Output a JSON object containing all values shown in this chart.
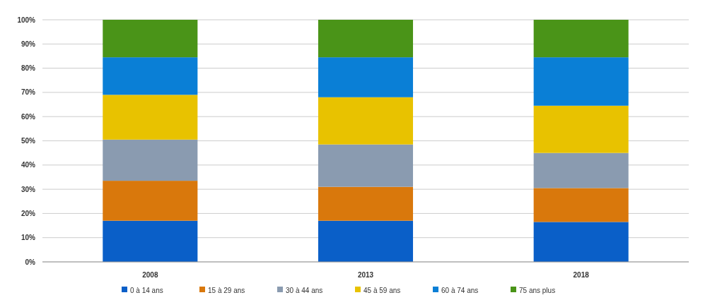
{
  "chart_data": {
    "type": "bar",
    "stacked": true,
    "categories": [
      "2008",
      "2013",
      "2018"
    ],
    "series": [
      {
        "name": "0 à 14 ans",
        "color": "#0a5fc8",
        "values": [
          17,
          17,
          16.5
        ]
      },
      {
        "name": "15 à 29 ans",
        "color": "#d9780c",
        "values": [
          16.5,
          14,
          14
        ]
      },
      {
        "name": "30 à 44 ans",
        "color": "#8a9bb0",
        "values": [
          17,
          17.5,
          14.5
        ]
      },
      {
        "name": "45 à 59 ans",
        "color": "#e8c200",
        "values": [
          18.5,
          19.5,
          19.5
        ]
      },
      {
        "name": "60 à 74 ans",
        "color": "#0a7fd6",
        "values": [
          15.5,
          16.5,
          20
        ]
      },
      {
        "name": "75 ans plus",
        "color": "#4a9418",
        "values": [
          15.5,
          15.5,
          15.5
        ]
      }
    ],
    "ylim": [
      0,
      100
    ],
    "yticks": [
      {
        "value": 0,
        "label": "0%"
      },
      {
        "value": 10,
        "label": "10%"
      },
      {
        "value": 20,
        "label": "20%"
      },
      {
        "value": 30,
        "label": "30%"
      },
      {
        "value": 40,
        "label": "40%"
      },
      {
        "value": 50,
        "label": "50%"
      },
      {
        "value": 60,
        "label": "60%"
      },
      {
        "value": 70,
        "label": "70%"
      },
      {
        "value": 80,
        "label": "80%"
      },
      {
        "value": 90,
        "label": "90%"
      },
      {
        "value": 100,
        "label": "100%"
      }
    ],
    "grid": "y",
    "legend": "bottom"
  }
}
